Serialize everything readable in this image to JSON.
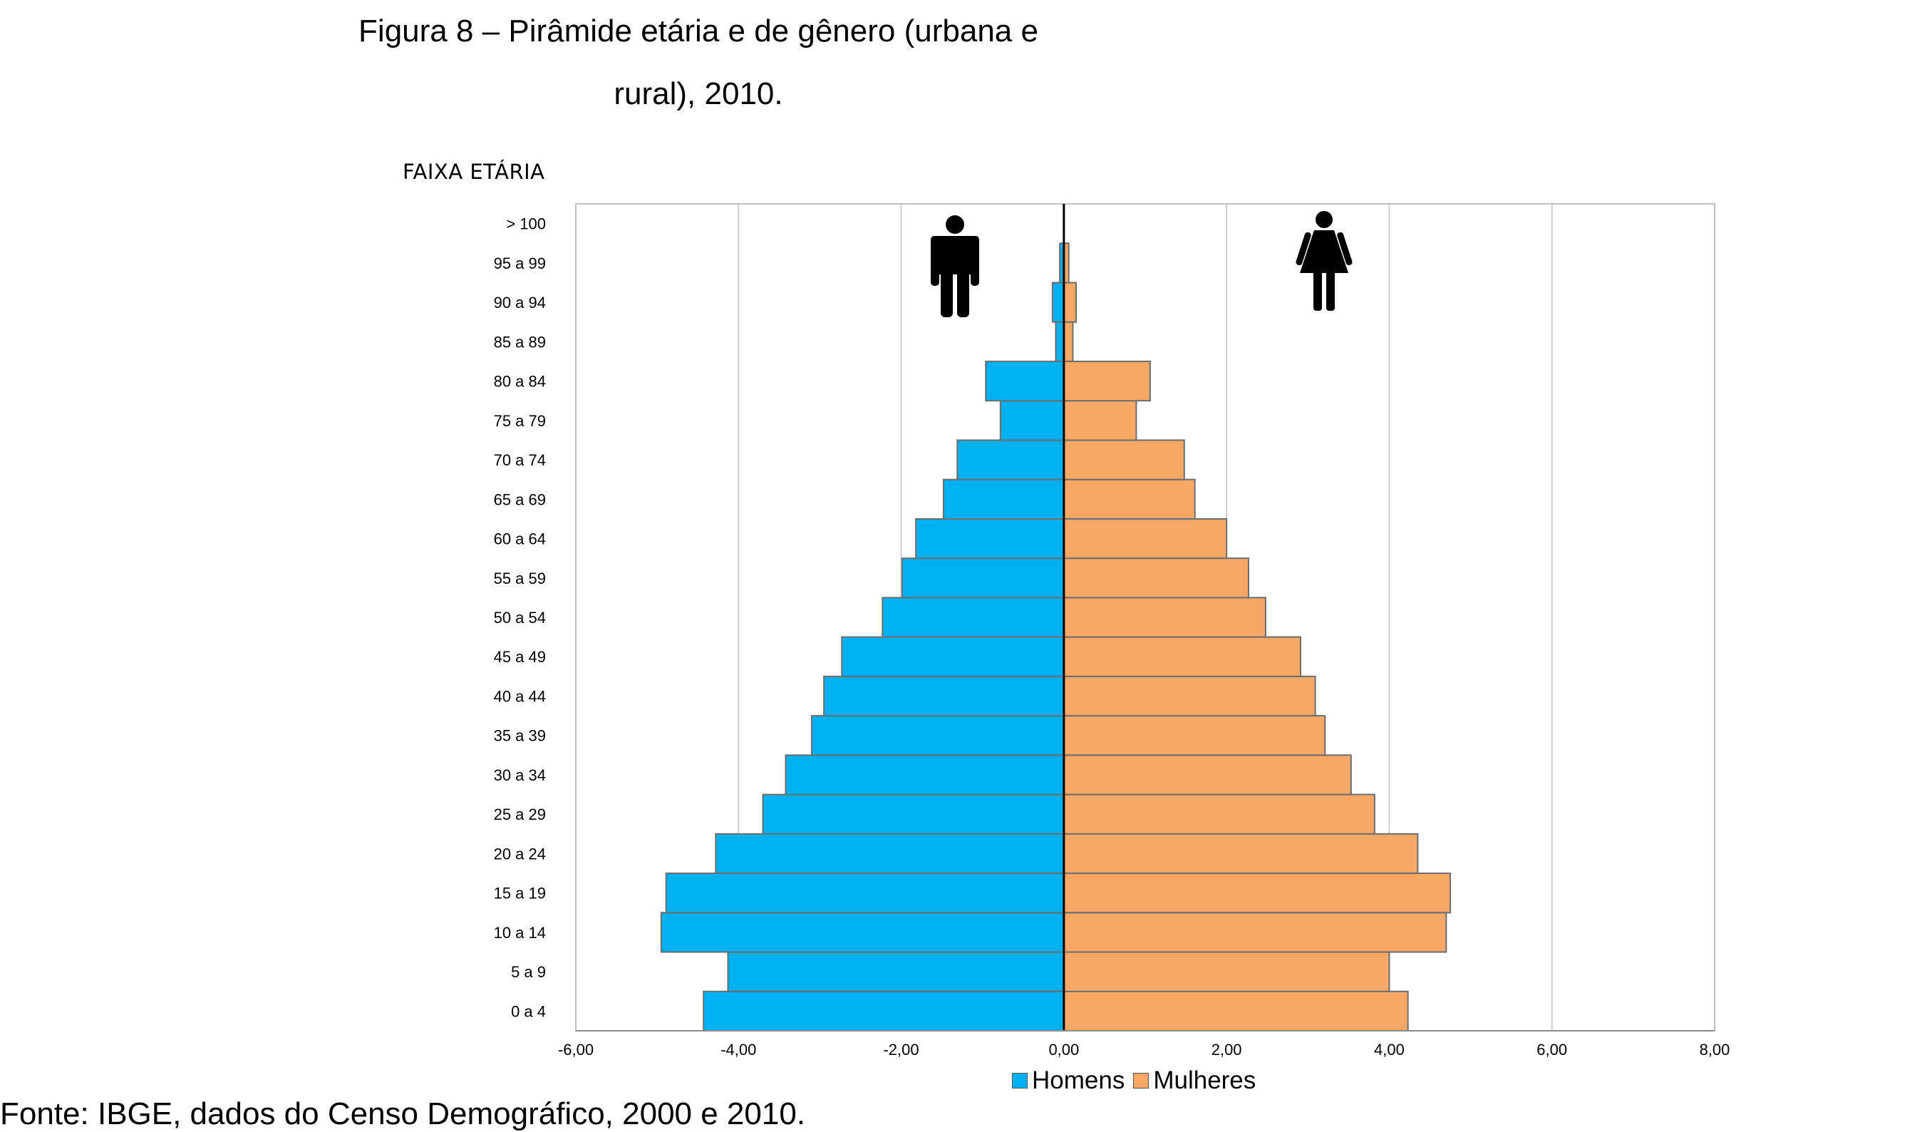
{
  "figure": {
    "title_line1": "Figura 8 – Pirâmide etária e de gênero (urbana e",
    "title_line2": "rural), 2010.",
    "source": "Fonte: IBGE, dados do Censo Demográfico, 2000 e 2010."
  },
  "chart_data": {
    "type": "bar",
    "orientation": "horizontal",
    "title": "",
    "ylabel": "FAIXA ETÁRIA",
    "xlabel": "",
    "xlim": [
      -6,
      8
    ],
    "x_ticks": [
      "-6,00",
      "-4,00",
      "-2,00",
      "0,00",
      "2,00",
      "4,00",
      "6,00",
      "8,00"
    ],
    "grid": "vertical",
    "legend_position": "bottom",
    "categories": [
      "0 a 4",
      "5 a 9",
      "10 a 14",
      "15 a 19",
      "20 a 24",
      "25 a 29",
      "30 a 34",
      "35 a 39",
      "40 a 44",
      "45 a 49",
      "50 a 54",
      "55 a 59",
      "60 a 64",
      "65 a 69",
      "70 a 74",
      "75 a 79",
      "80 a 84",
      "85 a 89",
      "90 a 94",
      "95 a 99",
      "> 100"
    ],
    "series": [
      {
        "name": "Homens",
        "color": "#00b0f0",
        "values": [
          -4.43,
          -4.13,
          -4.95,
          -4.89,
          -4.28,
          -3.7,
          -3.42,
          -3.1,
          -2.95,
          -2.73,
          -2.23,
          -1.99,
          -1.82,
          -1.48,
          -1.31,
          -0.78,
          -0.96,
          -0.1,
          -0.14,
          -0.05,
          0.0
        ]
      },
      {
        "name": "Mulheres",
        "color": "#f7a866",
        "values": [
          4.23,
          4.0,
          4.7,
          4.75,
          4.35,
          3.82,
          3.53,
          3.21,
          3.09,
          2.91,
          2.48,
          2.27,
          2.0,
          1.61,
          1.48,
          0.89,
          1.06,
          0.11,
          0.15,
          0.06,
          0.0
        ]
      }
    ],
    "icons": [
      "male-figure-icon",
      "female-figure-icon"
    ]
  }
}
